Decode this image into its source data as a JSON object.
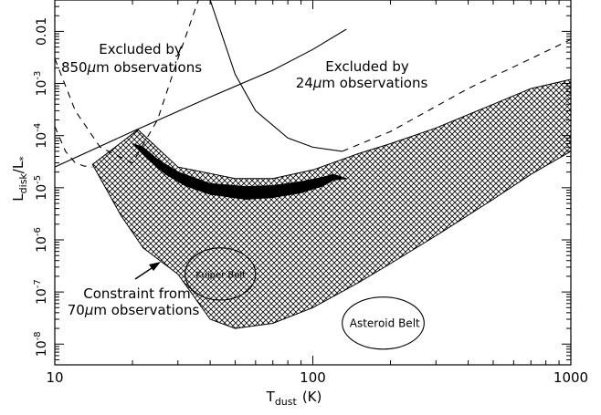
{
  "chart_data": {
    "type": "line",
    "title": "",
    "xlabel_main": "T",
    "xlabel_sub": "dust",
    "xlabel_unit": "(K)",
    "ylabel_main": "L",
    "ylabel_sub": "disk",
    "ylabel_sep": "/L",
    "ylabel_star": "*",
    "xscale": "log",
    "yscale": "log",
    "xlim": [
      10,
      1000
    ],
    "ylim": [
      4e-09,
      0.04
    ],
    "grid": false,
    "x_ticks": [
      {
        "value": 10,
        "label": "10"
      },
      {
        "value": 100,
        "label": "100"
      },
      {
        "value": 1000,
        "label": "1000"
      }
    ],
    "y_ticks": [
      {
        "value": 1e-08,
        "base": "10",
        "exp": "-8"
      },
      {
        "value": 1e-07,
        "base": "10",
        "exp": "-7"
      },
      {
        "value": 1e-06,
        "base": "10",
        "exp": "-6"
      },
      {
        "value": 1e-05,
        "base": "10",
        "exp": "-5"
      },
      {
        "value": 0.0001,
        "base": "10",
        "exp": "-4"
      },
      {
        "value": 0.001,
        "base": "10",
        "exp": "-3"
      },
      {
        "value": 0.01,
        "base": "0.01",
        "exp": ""
      }
    ],
    "series": [
      {
        "style": "solid",
        "x": [
          10,
          20,
          40,
          70,
          100,
          135
        ],
        "y": [
          2.5e-05,
          0.00012,
          0.00055,
          0.0018,
          0.0045,
          0.011
        ]
      },
      {
        "style": "dashed",
        "x": [
          10,
          12,
          15,
          20,
          25,
          30,
          36
        ],
        "y": [
          0.003,
          0.0003,
          6e-05,
          3e-05,
          0.0002,
          0.003,
          0.04
        ]
      },
      {
        "style": "dashed",
        "x": [
          10,
          11,
          12,
          13,
          14
        ],
        "y": [
          0.00015,
          5e-05,
          3e-05,
          2.6e-05,
          2.5e-05
        ]
      },
      {
        "style": "solid",
        "x": [
          40,
          50,
          60,
          80,
          100,
          130
        ],
        "y": [
          0.04,
          0.0015,
          0.0003,
          9e-05,
          6e-05,
          5e-05
        ]
      },
      {
        "style": "dashed",
        "x": [
          130,
          200,
          400,
          700,
          1000
        ],
        "y": [
          5e-05,
          0.00012,
          0.0008,
          0.003,
          0.007
        ]
      }
    ],
    "regions": [
      {
        "label": "Constraint from 70µm observations",
        "fill": "crosshatch",
        "upper": {
          "x": [
            14,
            21,
            30,
            50,
            70,
            100,
            150,
            200,
            300,
            500,
            700,
            1000
          ],
          "y": [
            2.8e-05,
            0.00013,
            2.5e-05,
            1.5e-05,
            1.5e-05,
            2.2e-05,
            4.5e-05,
            7e-05,
            0.00014,
            0.0004,
            0.0008,
            0.0012
          ]
        },
        "lower": {
          "x": [
            14,
            18,
            22,
            30,
            40,
            50,
            70,
            100,
            150,
            200,
            300,
            500,
            700,
            1000
          ],
          "y": [
            2.8e-05,
            3e-06,
            7e-07,
            2.2e-07,
            3e-08,
            2e-08,
            2.5e-08,
            5e-08,
            1.5e-07,
            3.5e-07,
            1.2e-06,
            6e-06,
            1.8e-05,
            5e-05
          ]
        }
      },
      {
        "fill": "solid",
        "upper": {
          "x": [
            20,
            22,
            25,
            30,
            40,
            55,
            70,
            90,
            110,
            120,
            135
          ],
          "y": [
            7e-05,
            6e-05,
            3.5e-05,
            2e-05,
            1.2e-05,
            1.05e-05,
            1.1e-05,
            1.3e-05,
            1.6e-05,
            1.8e-05,
            1.5e-05
          ]
        },
        "lower": {
          "x": [
            20,
            23,
            27,
            32,
            40,
            55,
            70,
            90,
            110,
            120,
            135
          ],
          "y": [
            7e-05,
            3.5e-05,
            1.8e-05,
            1.1e-05,
            7.5e-06,
            6e-06,
            6.5e-06,
            8e-06,
            1.1e-05,
            1.4e-05,
            1.5e-05
          ]
        }
      }
    ],
    "ellipses": [
      {
        "label": "Kuiper Belt",
        "x_center": 44,
        "y_center": 2.2e-07,
        "x_range": [
          32,
          60
        ],
        "y_range": [
          7e-08,
          7e-07
        ]
      },
      {
        "label": "Asteroid Belt",
        "x_center": 190,
        "y_center": 2.5e-08,
        "x_range": [
          130,
          270
        ],
        "y_range": [
          8e-09,
          8e-08
        ]
      }
    ],
    "annotations": [
      {
        "line1": "Excluded by",
        "line2_pre": "850",
        "line2_mu": "μ",
        "line2_post": "m observations"
      },
      {
        "line1": "Excluded by",
        "line2_pre": "24",
        "line2_mu": "μ",
        "line2_post": "m observations"
      },
      {
        "line1": "Constraint from",
        "line2_pre": "70",
        "line2_mu": "μ",
        "line2_post": "m observations"
      }
    ]
  }
}
